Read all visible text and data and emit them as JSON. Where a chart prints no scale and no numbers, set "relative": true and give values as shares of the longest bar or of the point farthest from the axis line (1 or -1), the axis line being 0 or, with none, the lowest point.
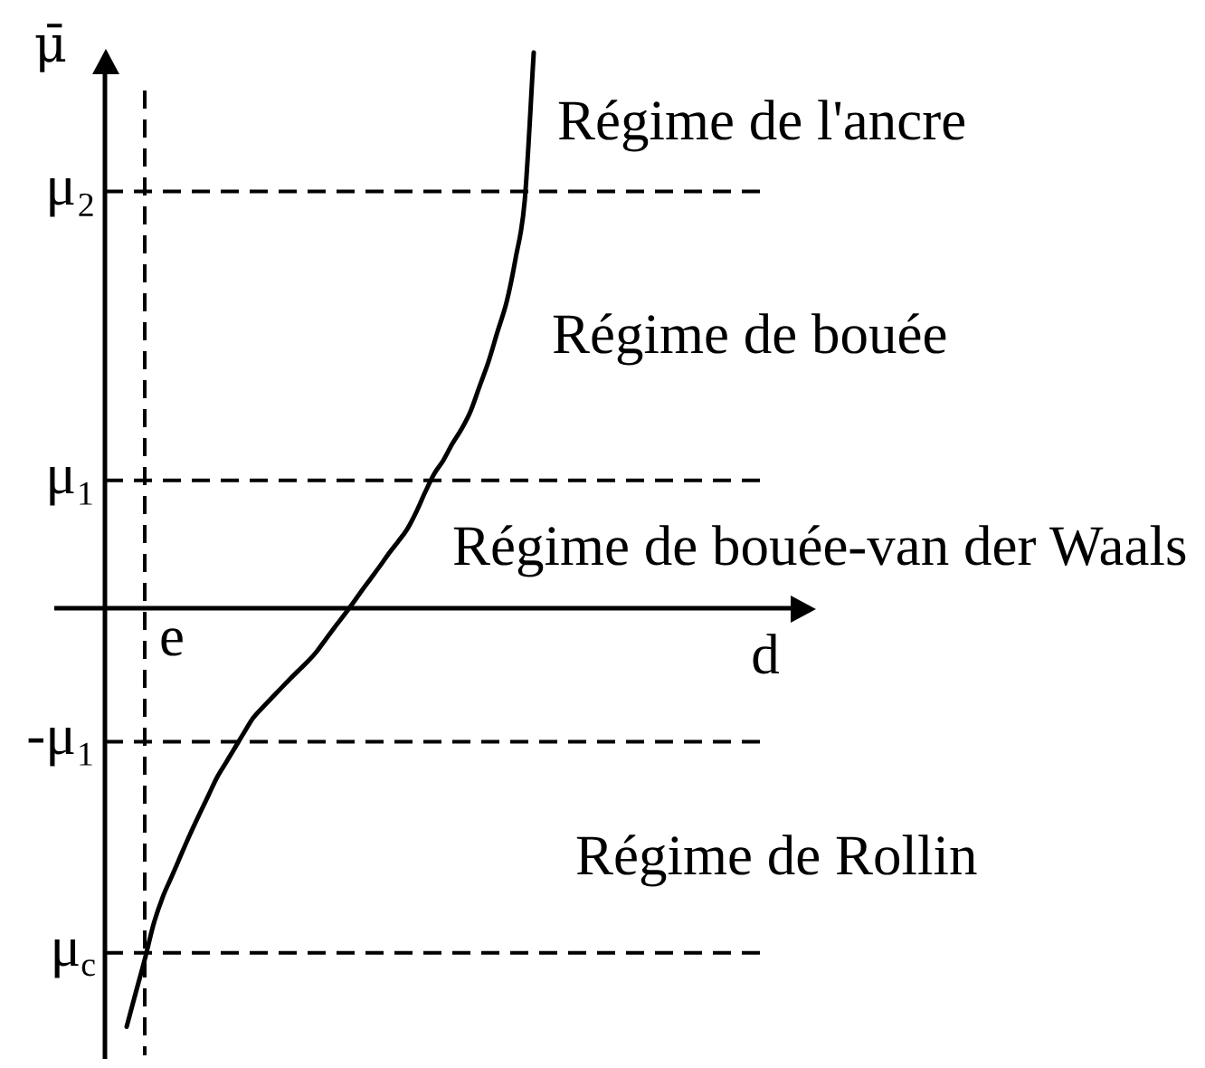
{
  "chart_data": {
    "type": "line",
    "relative": true,
    "xlabel": "d",
    "ylabel": "μ̄",
    "color": "#000000",
    "marker": "none",
    "line_style": "solid",
    "categories": [
      null,
      null,
      null,
      null,
      null,
      null,
      null,
      null,
      null,
      null,
      null,
      null,
      null,
      null,
      null,
      null,
      null,
      null,
      null,
      null,
      null,
      null,
      null,
      null,
      null,
      null,
      null,
      null,
      null,
      null,
      null,
      null,
      null,
      null,
      null,
      null,
      null,
      null,
      null,
      null,
      null,
      null,
      null,
      null,
      null,
      null
    ],
    "values": [
      -0.753,
      -0.692,
      -0.632,
      -0.567,
      -0.519,
      -0.482,
      -0.444,
      -0.407,
      -0.372,
      -0.338,
      -0.304,
      -0.277,
      -0.25,
      -0.223,
      -0.197,
      -0.179,
      -0.162,
      -0.145,
      -0.128,
      -0.112,
      -0.096,
      -0.078,
      -0.056,
      -0.034,
      -0.013,
      0.009,
      0.032,
      0.054,
      0.076,
      0.099,
      0.12,
      0.142,
      0.173,
      0.209,
      0.242,
      0.266,
      0.296,
      0.322,
      0.354,
      0.399,
      0.444,
      0.498,
      0.551,
      0.63,
      0.733,
      1
    ],
    "ref_lines": [
      {
        "axis": "y",
        "value": 0.75,
        "label": "μ₂",
        "color": "#000000",
        "line_style": "dashed"
      },
      {
        "axis": "y",
        "value": 0.23,
        "label": "μ₁",
        "color": "#000000",
        "line_style": "dashed"
      },
      {
        "axis": "y",
        "value": -0.24,
        "label": "-μ₁",
        "color": "#000000",
        "line_style": "dashed"
      },
      {
        "axis": "y",
        "value": -0.62,
        "label": "μ$_{c}$",
        "color": "#000000",
        "line_style": "dashed"
      },
      {
        "axis": "x",
        "label": "e",
        "color": "#000000",
        "line_style": "dashed"
      }
    ],
    "annotations": [
      "Régime de l'ancre",
      "Régime de bouée",
      "Régime de bouée-van der Waals",
      "Régime de Rollin"
    ]
  }
}
